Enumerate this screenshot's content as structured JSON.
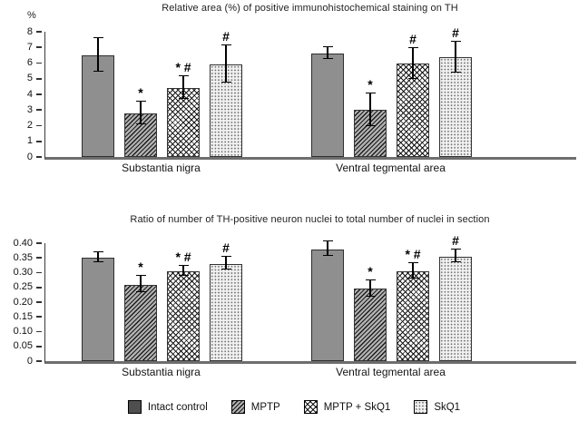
{
  "figure": {
    "background": "#ffffff"
  },
  "colors": {
    "solid_bar_fill": "#8f8f8f",
    "legend_solid_swatch": "#4f4f4f",
    "bar_border": "#333333",
    "baseline_axis": "#6e6e6e",
    "error_bar": "#000000",
    "text": "#1a1a1a"
  },
  "legend": {
    "items": [
      {
        "label": "Intact control",
        "pattern": "solid"
      },
      {
        "label": "MPTP",
        "pattern": "diagonal"
      },
      {
        "label": "MPTP + SkQ1",
        "pattern": "crosshatch"
      },
      {
        "label": "SkQ1",
        "pattern": "dots"
      }
    ]
  },
  "chart_data": [
    {
      "type": "bar",
      "title": "Relative area (%) of positive immunohistochemical staining on TH",
      "y_axis_label": "%",
      "xlabel": "",
      "ylabel": "%",
      "ylim": [
        0,
        8
      ],
      "yticks": [
        "8",
        "7",
        "6",
        "5",
        "4",
        "3",
        "2",
        "1",
        "0"
      ],
      "grid": false,
      "legend_position": "shared-bottom",
      "categories": [
        "Substantia nigra",
        "Ventral tegmental area"
      ],
      "series": [
        {
          "name": "Intact control",
          "pattern": "solid",
          "values": [
            6.5,
            6.6
          ],
          "errors": [
            1.05,
            0.35
          ],
          "annotations": [
            "",
            ""
          ]
        },
        {
          "name": "MPTP",
          "pattern": "diagonal",
          "values": [
            2.8,
            3.0
          ],
          "errors": [
            0.7,
            1.0
          ],
          "annotations": [
            "*",
            "*"
          ]
        },
        {
          "name": "MPTP + SkQ1",
          "pattern": "crosshatch",
          "values": [
            4.4,
            5.95
          ],
          "errors": [
            0.7,
            0.95
          ],
          "annotations": [
            "* #",
            "#"
          ]
        },
        {
          "name": "SkQ1",
          "pattern": "dots",
          "values": [
            5.9,
            6.35
          ],
          "errors": [
            1.15,
            0.95
          ],
          "annotations": [
            "#",
            "#"
          ]
        }
      ]
    },
    {
      "type": "bar",
      "title": "Ratio of number of TH-positive neuron nuclei to total number of nuclei in section",
      "y_axis_label": "",
      "xlabel": "",
      "ylabel": "",
      "ylim": [
        0,
        0.4
      ],
      "yticks": [
        "0.40",
        "0.35",
        "0.30",
        "0.25",
        "0.20",
        "0.15",
        "0.10",
        "0.05",
        "0"
      ],
      "grid": false,
      "legend_position": "shared-bottom",
      "categories": [
        "Substantia nigra",
        "Ventral tegmental area"
      ],
      "series": [
        {
          "name": "Intact control",
          "pattern": "solid",
          "values": [
            0.35,
            0.38
          ],
          "errors": [
            0.015,
            0.022
          ],
          "annotations": [
            "",
            ""
          ]
        },
        {
          "name": "MPTP",
          "pattern": "diagonal",
          "values": [
            0.26,
            0.245
          ],
          "errors": [
            0.025,
            0.025
          ],
          "annotations": [
            "*",
            "*"
          ]
        },
        {
          "name": "MPTP + SkQ1",
          "pattern": "crosshatch",
          "values": [
            0.305,
            0.305
          ],
          "errors": [
            0.015,
            0.025
          ],
          "annotations": [
            "* #",
            "* #"
          ]
        },
        {
          "name": "SkQ1",
          "pattern": "dots",
          "values": [
            0.33,
            0.355
          ],
          "errors": [
            0.02,
            0.02
          ],
          "annotations": [
            "#",
            "#"
          ]
        }
      ]
    }
  ]
}
